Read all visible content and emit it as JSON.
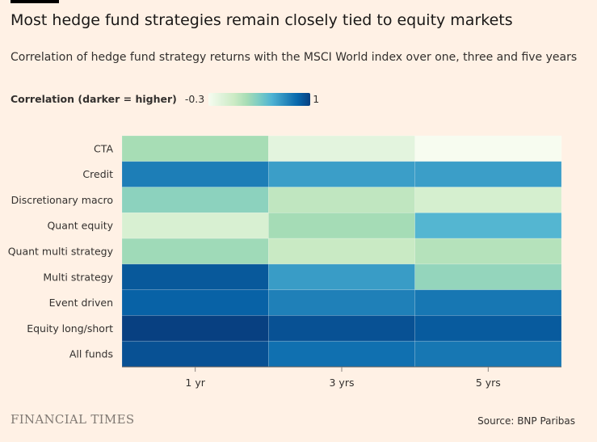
{
  "chart_data": {
    "type": "heatmap",
    "title": "Most hedge fund strategies remain closely tied to equity markets",
    "subtitle": "Correlation of hedge fund strategy returns with the MSCI World index over one, three and five years",
    "legend": {
      "title": "Correlation (darker = higher)",
      "min_label": "-0.3",
      "max_label": "1",
      "min": -0.3,
      "max": 1,
      "placement": "top-left"
    },
    "colors": [
      "#f7fcf0",
      "#e0f3db",
      "#ccebc5",
      "#a8ddb5",
      "#7bccc4",
      "#4eb3d3",
      "#2b8cbe",
      "#0868ac",
      "#084081"
    ],
    "x": [
      "1 yr",
      "3 yrs",
      "5 yrs"
    ],
    "y": [
      "CTA",
      "Credit",
      "Discretionary macro",
      "Quant equity",
      "Quant multi strategy",
      "Multi strategy",
      "Event driven",
      "Equity long/short",
      "All funds"
    ],
    "values": [
      [
        0.19,
        -0.16,
        -0.3
      ],
      [
        0.74,
        0.6,
        0.6
      ],
      [
        0.29,
        0.08,
        -0.05
      ],
      [
        -0.07,
        0.2,
        0.49
      ],
      [
        0.22,
        0.04,
        0.13
      ],
      [
        0.9,
        0.61,
        0.26
      ],
      [
        0.86,
        0.73,
        0.77
      ],
      [
        1.0,
        0.93,
        0.89
      ],
      [
        0.93,
        0.8,
        0.77
      ]
    ]
  },
  "footer": {
    "brand": "FINANCIAL TIMES",
    "source": "Source: BNP Paribas"
  }
}
